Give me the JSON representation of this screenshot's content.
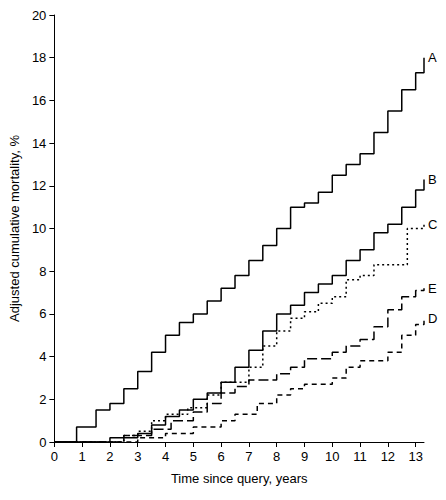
{
  "chart_data": {
    "type": "line",
    "x_label": "Time since query, years",
    "y_label": "Adjusted cumulative mortality, %",
    "xlim": [
      0,
      13.3
    ],
    "xticks": [
      0,
      1,
      2,
      3,
      4,
      5,
      6,
      7,
      8,
      9,
      10,
      11,
      12,
      13
    ],
    "ylim": [
      0,
      20
    ],
    "yticks": [
      0,
      2,
      4,
      6,
      8,
      10,
      12,
      14,
      16,
      18,
      20
    ],
    "grid": false,
    "series": [
      {
        "name": "A",
        "color": "#000000",
        "line_style": "solid",
        "x": [
          0,
          0.7,
          0.8,
          1.5,
          2,
          2.5,
          3,
          3.5,
          4,
          4.5,
          5,
          5.5,
          6,
          6.5,
          7,
          7.5,
          8,
          8.5,
          9,
          9.5,
          10,
          10.5,
          11,
          11.5,
          12,
          12.5,
          13,
          13.3
        ],
        "values": [
          0,
          0,
          0.7,
          1.5,
          1.8,
          2.5,
          3.3,
          4.2,
          5,
          5.6,
          6,
          6.6,
          7.2,
          7.8,
          8.5,
          9.2,
          10,
          11,
          11.2,
          11.7,
          12.5,
          13,
          13.5,
          14.5,
          15.5,
          16.5,
          17.3,
          18
        ]
      },
      {
        "name": "B",
        "color": "#000000",
        "line_style": "solid",
        "x": [
          0,
          1,
          2,
          3,
          3.5,
          4,
          4.5,
          5,
          5.5,
          6,
          6.5,
          7,
          7.5,
          8,
          8.5,
          9,
          9.5,
          10,
          10.5,
          11,
          11.5,
          12,
          12.5,
          13,
          13.3
        ],
        "values": [
          0,
          0,
          0.2,
          0.4,
          0.8,
          1.2,
          1.5,
          2,
          2.3,
          2.8,
          3.5,
          4.3,
          5.2,
          6,
          6.4,
          7,
          7.4,
          7.8,
          8.5,
          9,
          9.8,
          10.2,
          11,
          11.8,
          12.3
        ]
      },
      {
        "name": "C",
        "color": "#000000",
        "line_style": "dotted",
        "x": [
          0,
          2,
          2.5,
          3,
          3.5,
          4,
          4.8,
          5.5,
          6,
          7,
          7.5,
          8,
          8.5,
          9,
          9.5,
          10,
          10.5,
          11,
          11.5,
          12.7,
          13.3
        ],
        "values": [
          0,
          0,
          0.3,
          0.5,
          1,
          1.3,
          1.6,
          2.2,
          2.8,
          3.5,
          4.5,
          5.2,
          5.8,
          6.1,
          6.5,
          6.8,
          7.6,
          7.8,
          8.3,
          10,
          10.2
        ]
      },
      {
        "name": "E",
        "color": "#000000",
        "line_style": "longdash",
        "x": [
          0,
          1.5,
          2.5,
          3.5,
          4.2,
          5,
          5.5,
          6,
          6.5,
          7,
          8,
          8.5,
          9,
          10,
          10.5,
          11,
          11.5,
          12,
          12.5,
          13,
          13.3
        ],
        "values": [
          0,
          0,
          0.3,
          0.6,
          1,
          1.4,
          1.8,
          2.3,
          2.6,
          2.9,
          3.2,
          3.5,
          3.9,
          4.2,
          4.5,
          4.8,
          5.4,
          6.2,
          6.8,
          7.1,
          7.2
        ]
      },
      {
        "name": "D",
        "color": "#000000",
        "line_style": "dashed",
        "x": [
          0,
          2,
          3,
          4,
          5,
          6,
          6.5,
          7.3,
          8,
          8.5,
          9,
          10,
          10.5,
          11,
          12,
          12.5,
          13,
          13.3
        ],
        "values": [
          0,
          0,
          0.2,
          0.4,
          0.7,
          1,
          1.3,
          1.8,
          2.2,
          2.5,
          2.7,
          3,
          3.5,
          3.8,
          4.2,
          5,
          5.5,
          5.8
        ]
      }
    ]
  }
}
